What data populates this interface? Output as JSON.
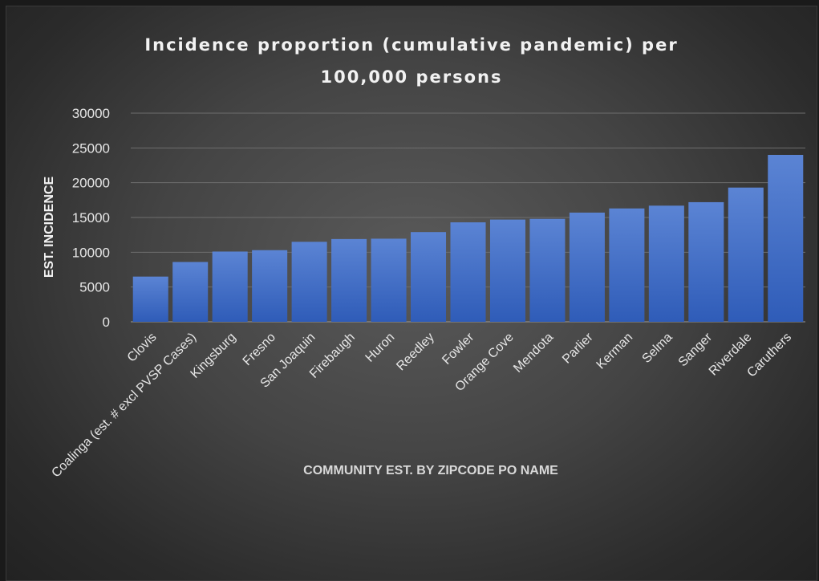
{
  "chart_data": {
    "type": "bar",
    "title_line1": "Incidence proportion (cumulative pandemic) per",
    "title_line2": "100,000 persons",
    "xlabel": "COMMUNITY EST. BY ZIPCODE PO NAME",
    "ylabel": "EST. INCIDENCE",
    "ylim": [
      0,
      30000
    ],
    "yticks": [
      0,
      5000,
      10000,
      15000,
      20000,
      25000,
      30000
    ],
    "grid": true,
    "categories": [
      "Clovis",
      "Coalinga (est. # excl PVSP Cases)",
      "Kingsburg",
      "Fresno",
      "San Joaquin",
      "Firebaugh",
      "Huron",
      "Reedley",
      "Fowler",
      "Orange Cove",
      "Mendota",
      "Parlier",
      "Kerman",
      "Selma",
      "Sanger",
      "Riverdale",
      "Caruthers"
    ],
    "values": [
      6500,
      8600,
      10100,
      10300,
      11500,
      11900,
      11950,
      12900,
      14300,
      14700,
      14800,
      15700,
      16300,
      16700,
      17200,
      19300,
      24000
    ],
    "colors": {
      "bar_top": "#5b84d4",
      "bar_bottom": "#2f5cb8"
    }
  }
}
